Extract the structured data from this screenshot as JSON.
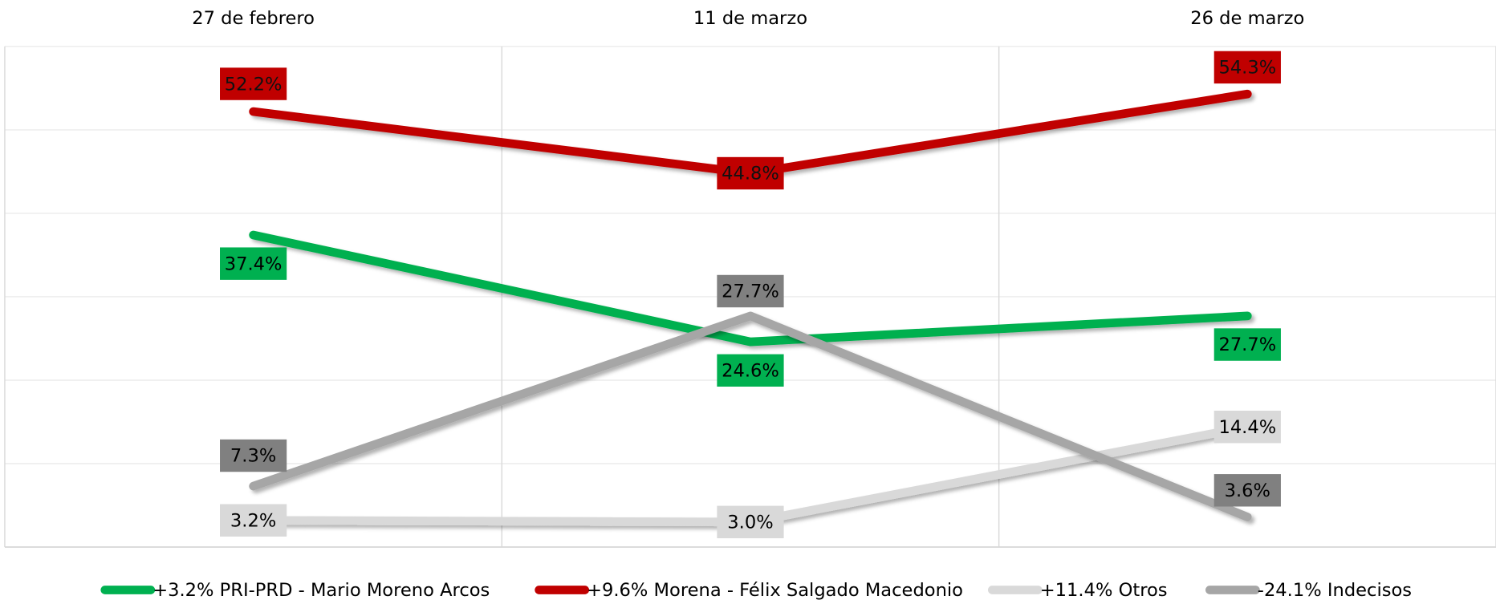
{
  "chart_data": {
    "type": "line",
    "categories": [
      "27 de febrero",
      "11 de marzo",
      "26 de marzo"
    ],
    "ylim": [
      0,
      60
    ],
    "yticks": [
      0,
      10,
      20,
      30,
      40,
      50,
      60
    ],
    "grid": true,
    "series": [
      {
        "name": "+3.2% PRI-PRD - Mario Moreno Arcos",
        "color": "#00b050",
        "values": [
          37.4,
          24.6,
          27.7
        ],
        "value_labels": [
          "37.4%",
          "24.6%",
          "27.7%"
        ]
      },
      {
        "name": "+9.6% Morena - Félix Salgado Macedonio",
        "color": "#c00000",
        "values": [
          52.2,
          44.8,
          54.3
        ],
        "value_labels": [
          "52.2%",
          "44.8%",
          "54.3%"
        ]
      },
      {
        "name": "+11.4% Otros",
        "color": "#d9d9d9",
        "values": [
          3.2,
          3.0,
          14.4
        ],
        "value_labels": [
          "3.2%",
          "3.0%",
          "14.4%"
        ]
      },
      {
        "name": "-24.1% Indecisos",
        "color": "#a6a6a6",
        "values": [
          7.3,
          27.7,
          3.6
        ],
        "value_labels": [
          "7.3%",
          "27.7%",
          "3.6%"
        ]
      }
    ]
  }
}
